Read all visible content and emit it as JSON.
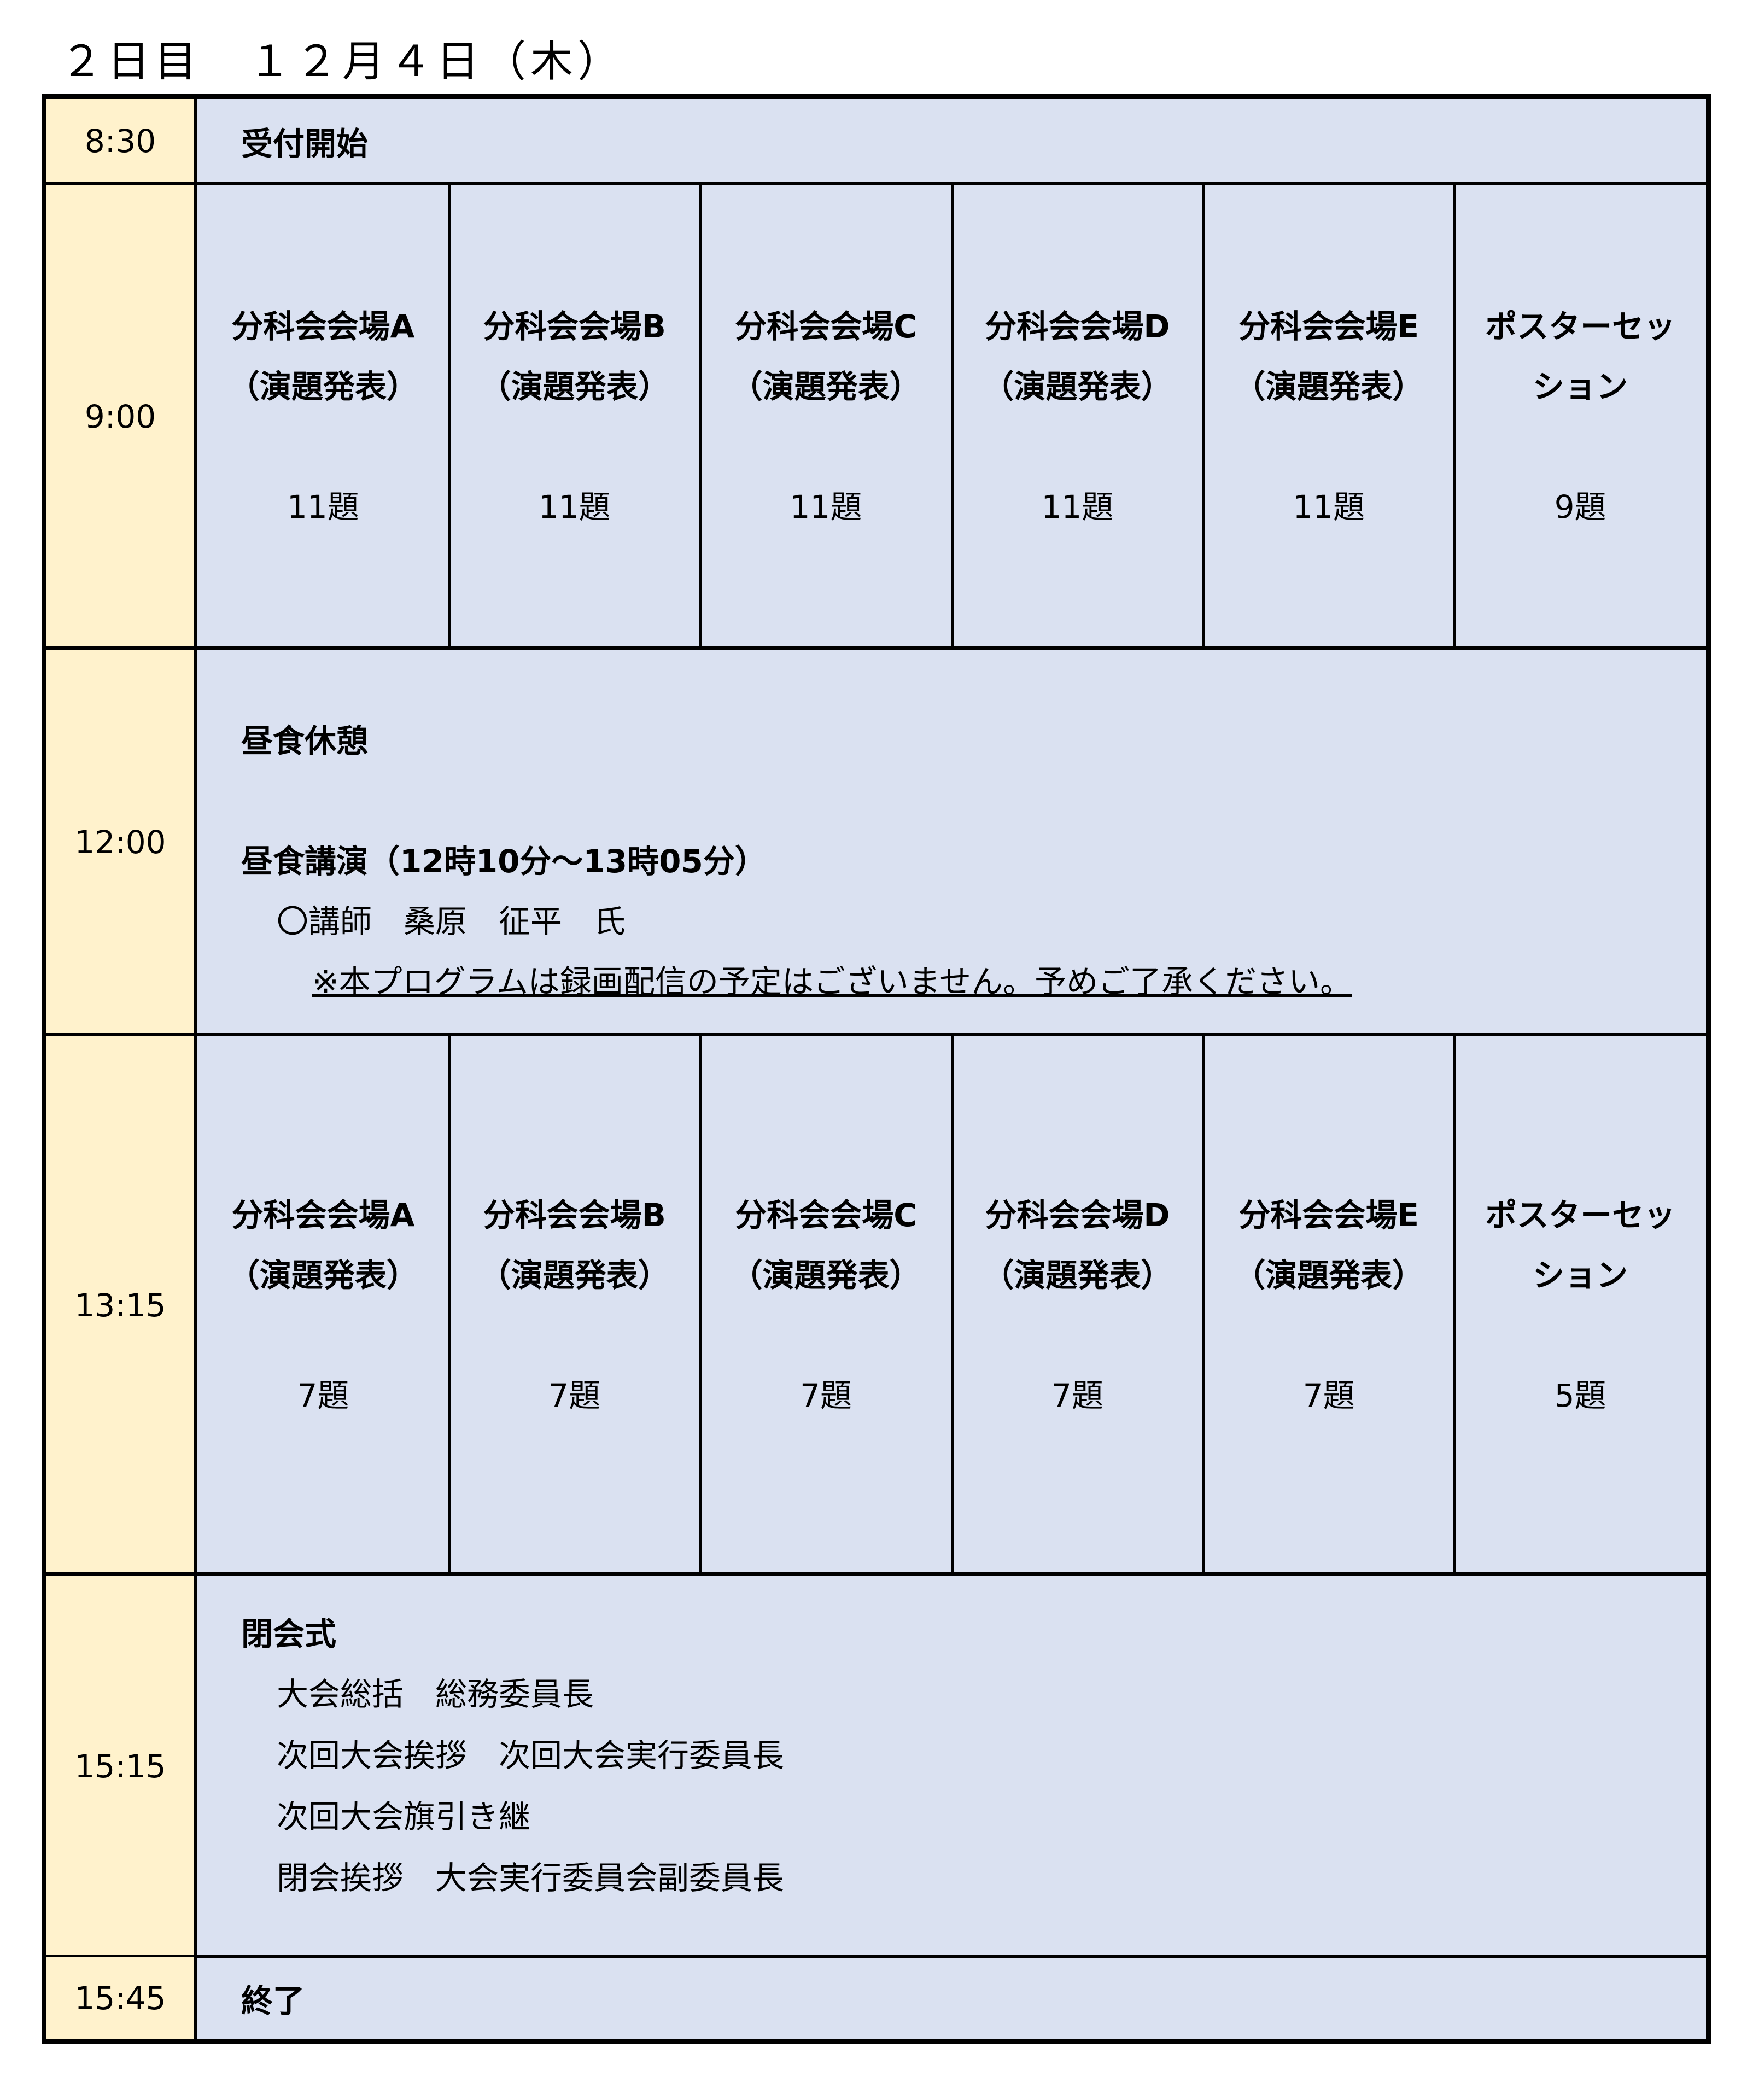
{
  "title": "２日目　１２月４日（木）",
  "colors": {
    "time_bg": "#fff2cc",
    "content_bg": "#dae1f1",
    "border": "#000000"
  },
  "rows": {
    "reception": {
      "time": "8:30",
      "label": "受付開始"
    },
    "morning": {
      "time": "9:00",
      "sessions": [
        {
          "name": "分科会会場A",
          "sub": "（演題発表）",
          "count": "11題"
        },
        {
          "name": "分科会会場B",
          "sub": "（演題発表）",
          "count": "11題"
        },
        {
          "name": "分科会会場C",
          "sub": "（演題発表）",
          "count": "11題"
        },
        {
          "name": "分科会会場D",
          "sub": "（演題発表）",
          "count": "11題"
        },
        {
          "name": "分科会会場E",
          "sub": "（演題発表）",
          "count": "11題"
        },
        {
          "name": "ポスターセッ",
          "sub": "ション",
          "count": "9題"
        }
      ]
    },
    "lunch": {
      "time": "12:00",
      "break_label": "昼食休憩",
      "lecture_label": "昼食講演（12時10分～13時05分）",
      "lecturer": "〇講師　桑原　征平　氏",
      "note": "※本プログラムは録画配信の予定はございません。予めご了承ください。"
    },
    "afternoon": {
      "time": "13:15",
      "sessions": [
        {
          "name": "分科会会場A",
          "sub": "（演題発表）",
          "count": "7題"
        },
        {
          "name": "分科会会場B",
          "sub": "（演題発表）",
          "count": "7題"
        },
        {
          "name": "分科会会場C",
          "sub": "（演題発表）",
          "count": "7題"
        },
        {
          "name": "分科会会場D",
          "sub": "（演題発表）",
          "count": "7題"
        },
        {
          "name": "分科会会場E",
          "sub": "（演題発表）",
          "count": "7題"
        },
        {
          "name": "ポスターセッ",
          "sub": "ション",
          "count": "5題"
        }
      ]
    },
    "closing": {
      "time": "15:15",
      "label": "閉会式",
      "items": [
        "大会総括　総務委員長",
        "次回大会挨拶　次回大会実行委員長",
        "次回大会旗引き継",
        "閉会挨拶　大会実行委員会副委員長"
      ]
    },
    "end": {
      "time": "15:45",
      "label": "終了"
    }
  }
}
